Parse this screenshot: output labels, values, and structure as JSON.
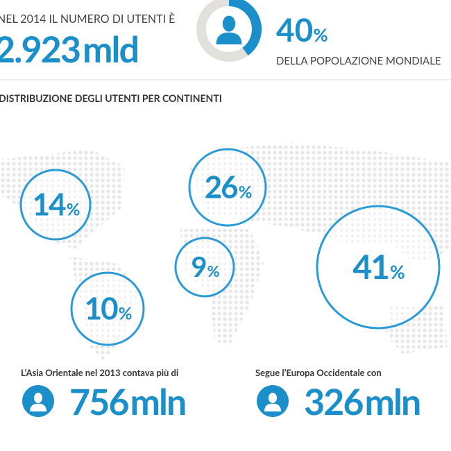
{
  "header": {
    "intro": "NEL 2014 IL NUMERO DI UTENTI È",
    "users_number": "2.923",
    "users_unit": "mld",
    "share": {
      "value": 40,
      "suffix": "%"
    },
    "share_caption": "DELLA POPOLAZIONE MONDIALE"
  },
  "section_title": "DISTRIBUZIONE DEGLI UTENTI PER CONTINENTI",
  "continents": [
    {
      "value": 14,
      "suffix": "%"
    },
    {
      "value": 26,
      "suffix": "%"
    },
    {
      "value": 9,
      "suffix": "%"
    },
    {
      "value": 41,
      "suffix": "%"
    },
    {
      "value": 10,
      "suffix": "%"
    }
  ],
  "facts": [
    {
      "text": "L’Asia Orientale nel 2013 contava più di",
      "number": "756",
      "unit": "mln"
    },
    {
      "text": "Segue l’Europa Occidentale con",
      "number": "326",
      "unit": "mln"
    }
  ]
}
